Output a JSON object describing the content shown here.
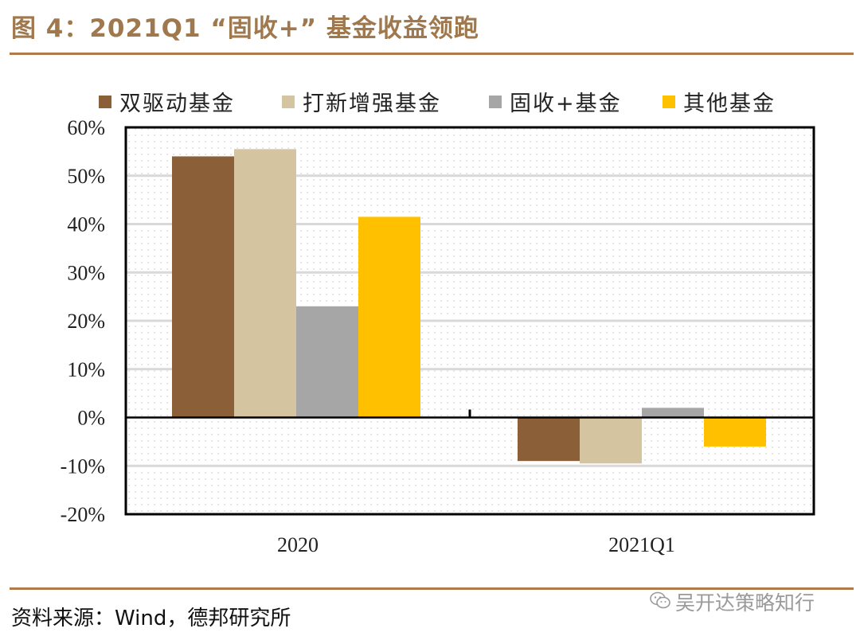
{
  "title": "图 4：2021Q1 “固收+” 基金收益领跑",
  "source": "资料来源：Wind，德邦研究所",
  "watermark": "吴开达策略知行",
  "colors": {
    "accent": "#b07a4a",
    "title": "#a0784e"
  },
  "chart_data": {
    "type": "bar",
    "categories": [
      "2020",
      "2021Q1"
    ],
    "series": [
      {
        "name": "双驱动基金",
        "color": "#8b6038",
        "values": [
          54,
          -9
        ]
      },
      {
        "name": "打新增强基金",
        "color": "#d4c4a0",
        "values": [
          55.5,
          -9.5
        ]
      },
      {
        "name": "固收+基金",
        "color": "#a6a6a6",
        "values": [
          23,
          2
        ]
      },
      {
        "name": "其他基金",
        "color": "#ffc000",
        "values": [
          41.5,
          -6
        ]
      }
    ],
    "ylim": [
      -20,
      60
    ],
    "yticks": [
      "-20%",
      "-10%",
      "0%",
      "10%",
      "20%",
      "30%",
      "40%",
      "50%",
      "60%"
    ],
    "grid": true,
    "legend": "top"
  }
}
